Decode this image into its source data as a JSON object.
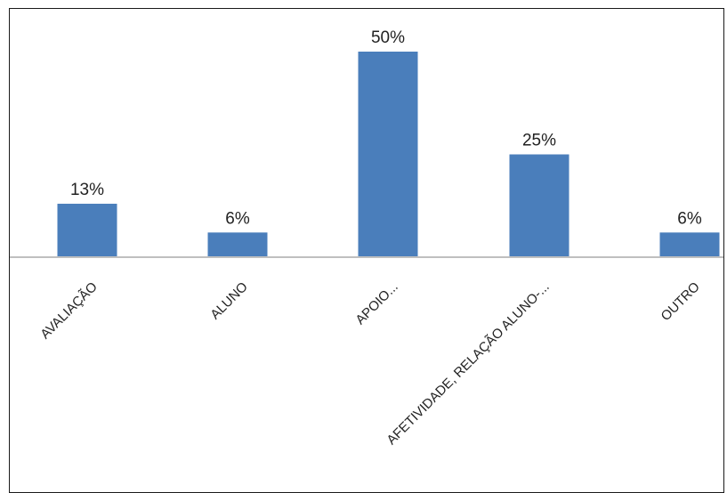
{
  "chart_data": {
    "type": "bar",
    "categories": [
      "AVALIAÇÃO",
      "ALUNO",
      "APOIO...",
      "AFETIVIDADE, RELAÇÃO ALUNO-...",
      "OUTRO"
    ],
    "values": [
      13,
      6,
      50,
      25,
      6
    ],
    "value_labels": [
      "13%",
      "6%",
      "50%",
      "25%",
      "6%"
    ],
    "unit": "%",
    "title": "",
    "xlabel": "",
    "ylabel": "",
    "ylim": [
      0,
      50
    ],
    "grid": false,
    "legend": "none",
    "bar_color": "#4a7ebb"
  }
}
